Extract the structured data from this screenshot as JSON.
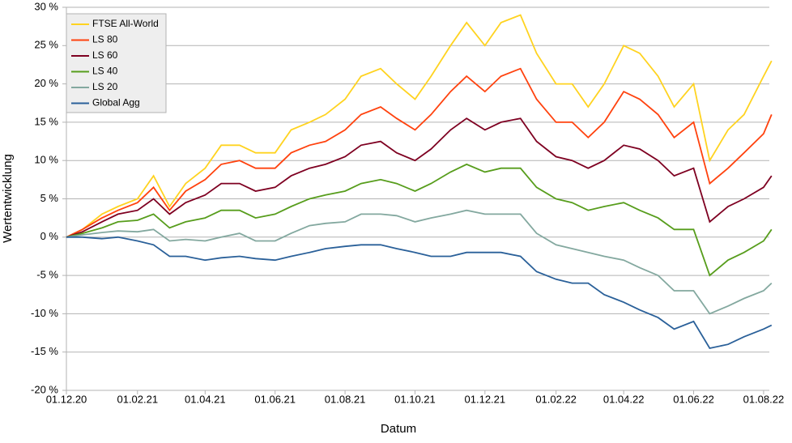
{
  "chart_data": {
    "type": "line",
    "xlabel": "Datum",
    "ylabel": "Wertentwicklung",
    "x": [
      "2020-12-01",
      "2020-12-15",
      "2021-01-01",
      "2021-01-15",
      "2021-02-01",
      "2021-02-15",
      "2021-03-01",
      "2021-03-15",
      "2021-04-01",
      "2021-04-15",
      "2021-05-01",
      "2021-05-15",
      "2021-06-01",
      "2021-06-15",
      "2021-07-01",
      "2021-07-15",
      "2021-08-01",
      "2021-08-15",
      "2021-09-01",
      "2021-09-15",
      "2021-10-01",
      "2021-10-15",
      "2021-11-01",
      "2021-11-15",
      "2021-12-01",
      "2021-12-15",
      "2022-01-01",
      "2022-01-15",
      "2022-02-01",
      "2022-02-15",
      "2022-03-01",
      "2022-03-15",
      "2022-04-01",
      "2022-04-15",
      "2022-05-01",
      "2022-05-15",
      "2022-06-01",
      "2022-06-15",
      "2022-07-01",
      "2022-07-15",
      "2022-08-01",
      "2022-08-08"
    ],
    "series": [
      {
        "name": "FTSE All-World",
        "color": "#ffd320",
        "values": [
          0,
          1,
          3,
          4,
          5,
          8,
          4,
          7,
          9,
          12,
          12,
          11,
          11,
          14,
          15,
          16,
          18,
          21,
          22,
          20,
          18,
          21,
          25,
          28,
          25,
          28,
          29,
          24,
          20,
          20,
          17,
          20,
          25,
          24,
          21,
          17,
          20,
          10,
          14,
          16,
          21,
          23
        ]
      },
      {
        "name": "LS 80",
        "color": "#ff420e",
        "values": [
          0,
          1,
          2.5,
          3.5,
          4.5,
          6.5,
          3.5,
          6,
          7.5,
          9.5,
          10,
          9,
          9,
          11,
          12,
          12.5,
          14,
          16,
          17,
          15.5,
          14,
          16,
          19,
          21,
          19,
          21,
          22,
          18,
          15,
          15,
          13,
          15,
          19,
          18,
          16,
          13,
          15,
          7,
          9,
          11,
          13.5,
          16
        ]
      },
      {
        "name": "LS 60",
        "color": "#7e0021",
        "values": [
          0,
          0.7,
          2,
          3,
          3.5,
          5,
          3,
          4.5,
          5.5,
          7,
          7,
          6,
          6.5,
          8,
          9,
          9.5,
          10.5,
          12,
          12.5,
          11,
          10,
          11.5,
          14,
          15.5,
          14,
          15,
          15.5,
          12.5,
          10.5,
          10,
          9,
          10,
          12,
          11.5,
          10,
          8,
          9,
          2,
          4,
          5,
          6.5,
          8
        ]
      },
      {
        "name": "LS 40",
        "color": "#579d1c",
        "values": [
          0,
          0.5,
          1.2,
          2,
          2.2,
          3,
          1.2,
          2,
          2.5,
          3.5,
          3.5,
          2.5,
          3,
          4,
          5,
          5.5,
          6,
          7,
          7.5,
          7,
          6,
          7,
          8.5,
          9.5,
          8.5,
          9,
          9,
          6.5,
          5,
          4.5,
          3.5,
          4,
          4.5,
          3.5,
          2.5,
          1,
          1,
          -5,
          -3,
          -2,
          -0.5,
          1
        ]
      },
      {
        "name": "LS 20",
        "color": "#83a89f",
        "values": [
          0,
          0.3,
          0.6,
          0.8,
          0.7,
          1,
          -0.5,
          -0.3,
          -0.5,
          0,
          0.5,
          -0.5,
          -0.5,
          0.5,
          1.5,
          1.8,
          2,
          3,
          3,
          2.8,
          2,
          2.5,
          3,
          3.5,
          3,
          3,
          3,
          0.5,
          -1,
          -1.5,
          -2,
          -2.5,
          -3,
          -4,
          -5,
          -7,
          -7,
          -10,
          -9,
          -8,
          -7,
          -6
        ]
      },
      {
        "name": "Global Agg",
        "color": "#2a6099",
        "values": [
          0,
          0,
          -0.2,
          0,
          -0.5,
          -1,
          -2.5,
          -2.5,
          -3,
          -2.7,
          -2.5,
          -2.8,
          -3,
          -2.5,
          -2,
          -1.5,
          -1.2,
          -1,
          -1,
          -1.5,
          -2,
          -2.5,
          -2.5,
          -2,
          -2,
          -2,
          -2.5,
          -4.5,
          -5.5,
          -6,
          -6,
          -7.5,
          -8.5,
          -9.5,
          -10.5,
          -12,
          -11,
          -14.5,
          -14,
          -13,
          -12,
          -11.5
        ]
      }
    ],
    "xlim": [
      "2020-12-01",
      "2022-08-06"
    ],
    "xticks": [
      {
        "value": "2020-12-01",
        "label": "01.12.20"
      },
      {
        "value": "2021-02-01",
        "label": "01.02.21"
      },
      {
        "value": "2021-04-01",
        "label": "01.04.21"
      },
      {
        "value": "2021-06-01",
        "label": "01.06.21"
      },
      {
        "value": "2021-08-01",
        "label": "01.08.21"
      },
      {
        "value": "2021-10-01",
        "label": "01.10.21"
      },
      {
        "value": "2021-12-01",
        "label": "01.12.21"
      },
      {
        "value": "2022-02-01",
        "label": "01.02.22"
      },
      {
        "value": "2022-04-01",
        "label": "01.04.22"
      },
      {
        "value": "2022-06-01",
        "label": "01.06.22"
      },
      {
        "value": "2022-08-01",
        "label": "01.08.22"
      }
    ],
    "ylim": [
      -20,
      30
    ],
    "yticks": [
      {
        "value": -20,
        "label": "-20 %"
      },
      {
        "value": -15,
        "label": "-15 %"
      },
      {
        "value": -10,
        "label": "-10 %"
      },
      {
        "value": -5,
        "label": "-5 %"
      },
      {
        "value": 0,
        "label": "0 %"
      },
      {
        "value": 5,
        "label": "5 %"
      },
      {
        "value": 10,
        "label": "10 %"
      },
      {
        "value": 15,
        "label": "15 %"
      },
      {
        "value": 20,
        "label": "20 %"
      },
      {
        "value": 25,
        "label": "25 %"
      },
      {
        "value": 30,
        "label": "30 %"
      }
    ],
    "grid": true,
    "legend": "top-left"
  }
}
